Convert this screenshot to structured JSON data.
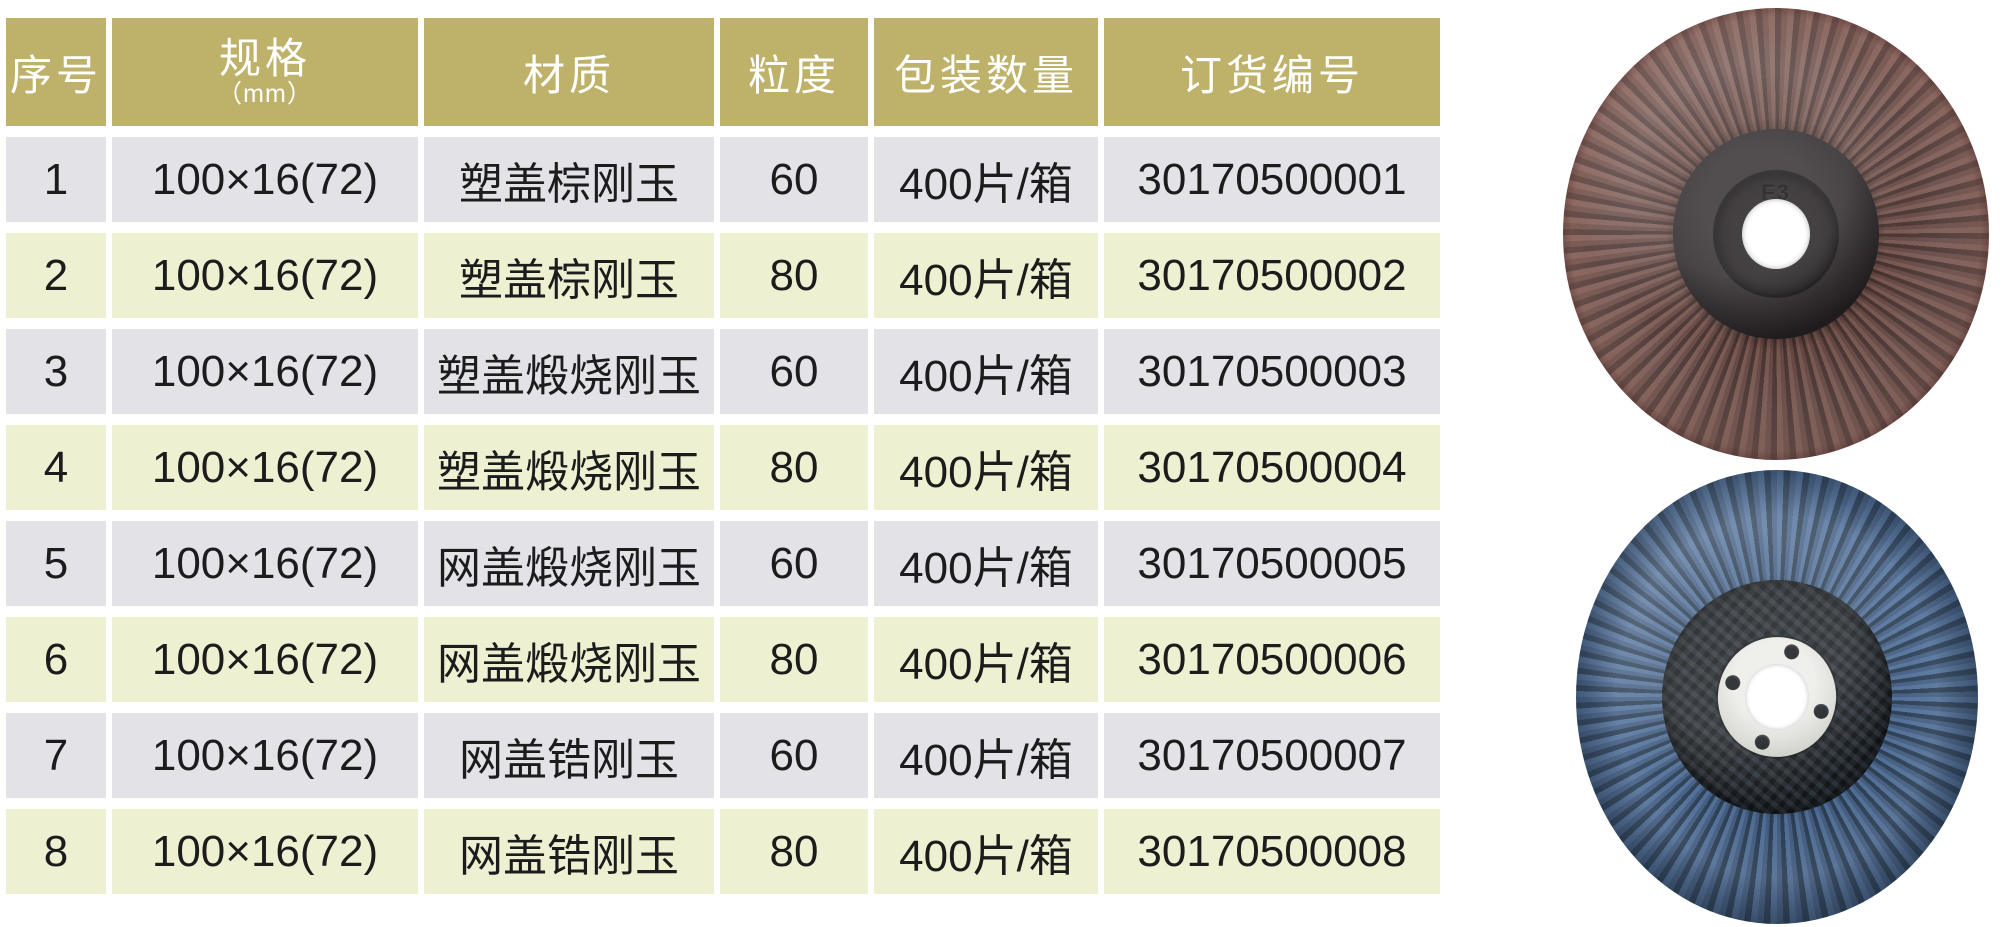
{
  "table": {
    "columns": [
      {
        "label": "序号"
      },
      {
        "label": "规格",
        "sublabel": "（mm）"
      },
      {
        "label": "材质"
      },
      {
        "label": "粒度"
      },
      {
        "label": "包装数量"
      },
      {
        "label": "订货编号"
      }
    ],
    "rows": [
      {
        "no": "1",
        "spec": "100×16(72)",
        "material": "塑盖棕刚玉",
        "grit": "60",
        "packing": "400片/箱",
        "order": "30170500001"
      },
      {
        "no": "2",
        "spec": "100×16(72)",
        "material": "塑盖棕刚玉",
        "grit": "80",
        "packing": "400片/箱",
        "order": "30170500002"
      },
      {
        "no": "3",
        "spec": "100×16(72)",
        "material": "塑盖煅烧刚玉",
        "grit": "60",
        "packing": "400片/箱",
        "order": "30170500003"
      },
      {
        "no": "4",
        "spec": "100×16(72)",
        "material": "塑盖煅烧刚玉",
        "grit": "80",
        "packing": "400片/箱",
        "order": "30170500004"
      },
      {
        "no": "5",
        "spec": "100×16(72)",
        "material": "网盖煅烧刚玉",
        "grit": "60",
        "packing": "400片/箱",
        "order": "30170500005"
      },
      {
        "no": "6",
        "spec": "100×16(72)",
        "material": "网盖煅烧刚玉",
        "grit": "80",
        "packing": "400片/箱",
        "order": "30170500006"
      },
      {
        "no": "7",
        "spec": "100×16(72)",
        "material": "网盖锆刚玉",
        "grit": "60",
        "packing": "400片/箱",
        "order": "30170500007"
      },
      {
        "no": "8",
        "spec": "100×16(72)",
        "material": "网盖锆刚玉",
        "grit": "80",
        "packing": "400片/箱",
        "order": "30170500008"
      }
    ]
  },
  "photos": {
    "top": {
      "name": "brown-flap-disc",
      "hub_mark": "F3"
    },
    "bottom": {
      "name": "blue-flap-disc"
    }
  },
  "colors": {
    "header_bg": "#beb26a",
    "header_text": "#ffffff",
    "row_gray_bg": "#e3e3e7",
    "row_green_bg": "#eef0d2",
    "body_text": "#1c1c1c"
  }
}
